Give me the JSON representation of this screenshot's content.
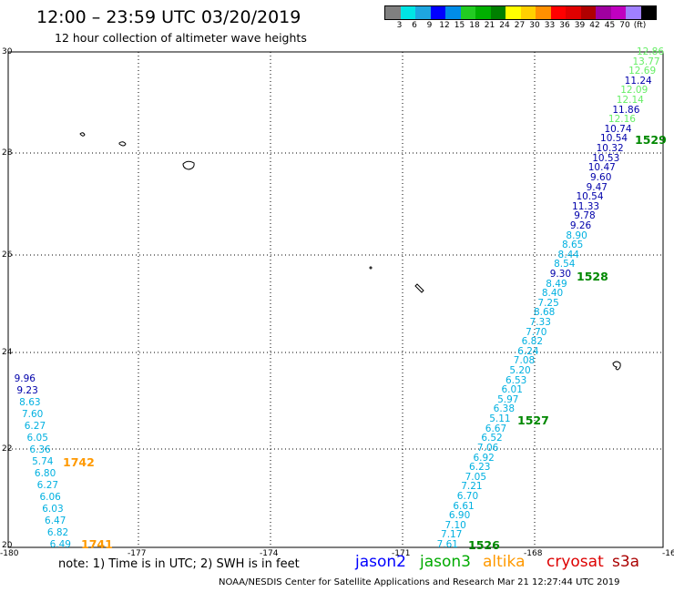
{
  "title": "12:00 – 23:59 UTC 03/20/2019",
  "subtitle": "12 hour collection of altimeter wave heights",
  "legend": {
    "colors": [
      "#808080",
      "#00e5e5",
      "#1ea6e0",
      "#0000ff",
      "#008ce8",
      "#22cc22",
      "#00b000",
      "#008000",
      "#ffff00",
      "#ffd000",
      "#ff9000",
      "#ff0000",
      "#e00000",
      "#b00000",
      "#a000a0",
      "#c000c0",
      "#a080ff",
      "#000000"
    ],
    "labels": [
      "3",
      "6",
      "9",
      "12",
      "15",
      "18",
      "21",
      "24",
      "27",
      "30",
      "33",
      "36",
      "39",
      "42",
      "45",
      "70",
      "(ft)"
    ]
  },
  "axes": {
    "lon_labels": [
      "-180",
      "-177",
      "-174",
      "-171",
      "-168",
      "-16"
    ],
    "lat_labels": [
      "30",
      "28",
      "26",
      "24",
      "22",
      "20"
    ]
  },
  "colors": {
    "cyan": "#00b0e0",
    "green_light": "#66ee66",
    "navy": "#0000aa",
    "track_green": "#008800",
    "track_orange": "#ff9900"
  },
  "tracks": {
    "jason3_values": [
      {
        "v": "12.86",
        "c": "green_light"
      },
      {
        "v": "13.77",
        "c": "green_light"
      },
      {
        "v": "12.69",
        "c": "green_light"
      },
      {
        "v": "11.24",
        "c": "navy"
      },
      {
        "v": "12.09",
        "c": "green_light"
      },
      {
        "v": "12.14",
        "c": "green_light"
      },
      {
        "v": "11.86",
        "c": "navy"
      },
      {
        "v": "12.16",
        "c": "green_light"
      },
      {
        "v": "10.74",
        "c": "navy"
      },
      {
        "v": "10.54",
        "c": "navy"
      },
      {
        "v": "10.32",
        "c": "navy"
      },
      {
        "v": "10.53",
        "c": "navy"
      },
      {
        "v": "10.47",
        "c": "navy"
      },
      {
        "v": "9.60",
        "c": "navy"
      },
      {
        "v": "9.47",
        "c": "navy"
      },
      {
        "v": "10.54",
        "c": "navy"
      },
      {
        "v": "11.33",
        "c": "navy"
      },
      {
        "v": "9.78",
        "c": "navy"
      },
      {
        "v": "9.26",
        "c": "navy"
      },
      {
        "v": "8.90",
        "c": "cyan"
      },
      {
        "v": "8.65",
        "c": "cyan"
      },
      {
        "v": "8.44",
        "c": "cyan"
      },
      {
        "v": "8.54",
        "c": "cyan"
      },
      {
        "v": "9.30",
        "c": "navy"
      },
      {
        "v": "8.49",
        "c": "cyan"
      },
      {
        "v": "8.40",
        "c": "cyan"
      },
      {
        "v": "7.25",
        "c": "cyan"
      },
      {
        "v": "8.68",
        "c": "cyan"
      },
      {
        "v": "7.33",
        "c": "cyan"
      },
      {
        "v": "7.70",
        "c": "cyan"
      },
      {
        "v": "6.82",
        "c": "cyan"
      },
      {
        "v": "6.24",
        "c": "cyan"
      },
      {
        "v": "7.08",
        "c": "cyan"
      },
      {
        "v": "5.20",
        "c": "cyan"
      },
      {
        "v": "6.53",
        "c": "cyan"
      },
      {
        "v": "6.01",
        "c": "cyan"
      },
      {
        "v": "5.97",
        "c": "cyan"
      },
      {
        "v": "6.38",
        "c": "cyan"
      },
      {
        "v": "5.11",
        "c": "cyan"
      },
      {
        "v": "6.67",
        "c": "cyan"
      },
      {
        "v": "6.52",
        "c": "cyan"
      },
      {
        "v": "7.06",
        "c": "cyan"
      },
      {
        "v": "6.92",
        "c": "cyan"
      },
      {
        "v": "6.23",
        "c": "cyan"
      },
      {
        "v": "7.05",
        "c": "cyan"
      },
      {
        "v": "7.21",
        "c": "cyan"
      },
      {
        "v": "6.70",
        "c": "cyan"
      },
      {
        "v": "6.61",
        "c": "cyan"
      },
      {
        "v": "6.90",
        "c": "cyan"
      },
      {
        "v": "7.10",
        "c": "cyan"
      },
      {
        "v": "7.17",
        "c": "cyan"
      },
      {
        "v": "7.61",
        "c": "cyan"
      }
    ],
    "jason3_times": [
      "1529",
      "1528",
      "1527",
      "1526"
    ],
    "altika_values": [
      {
        "v": "9.96",
        "c": "navy"
      },
      {
        "v": "9.23",
        "c": "navy"
      },
      {
        "v": "8.63",
        "c": "cyan"
      },
      {
        "v": "7.60",
        "c": "cyan"
      },
      {
        "v": "6.27",
        "c": "cyan"
      },
      {
        "v": "6.05",
        "c": "cyan"
      },
      {
        "v": "6.36",
        "c": "cyan"
      },
      {
        "v": "5.74",
        "c": "cyan"
      },
      {
        "v": "6.80",
        "c": "cyan"
      },
      {
        "v": "6.27",
        "c": "cyan"
      },
      {
        "v": "6.06",
        "c": "cyan"
      },
      {
        "v": "6.03",
        "c": "cyan"
      },
      {
        "v": "6.47",
        "c": "cyan"
      },
      {
        "v": "6.82",
        "c": "cyan"
      },
      {
        "v": "6.49",
        "c": "cyan"
      }
    ],
    "altika_times": [
      "1742",
      "1741"
    ]
  },
  "footer": {
    "note": "note:  1) Time is in UTC;  2) SWH is in feet",
    "satellites": [
      {
        "name": "jason2",
        "color": "#0000ff"
      },
      {
        "name": "jason3",
        "color": "#00aa00"
      },
      {
        "name": "altika",
        "color": "#ff9900"
      },
      {
        "name": "cryosat",
        "color": "#dd0000"
      },
      {
        "name": "s3a",
        "color": "#aa0000"
      }
    ],
    "credit": "NOAA/NESDIS Center for Satellite Applications and Research     Mar 21 12:27:44 UTC 2019"
  }
}
